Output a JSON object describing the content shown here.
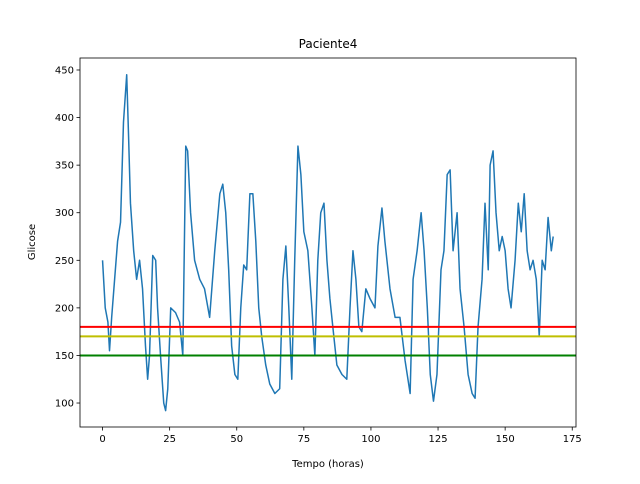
{
  "chart_data": {
    "type": "line",
    "title": "Paciente4",
    "x_label": "Tempo (horas)",
    "y_label": "Glicose",
    "x": [
      0,
      0.5,
      1,
      2,
      2.6,
      3.4,
      4.5,
      5.6,
      6.7,
      7.8,
      9,
      9.7,
      10.4,
      11.6,
      12.7,
      13.8,
      14.9,
      16,
      16.8,
      17.5,
      18.7,
      19.8,
      20.5,
      21.6,
      22.8,
      23.5,
      24.3,
      25.4,
      27.2,
      28.7,
      29.9,
      31,
      31.7,
      32.8,
      34.3,
      36.2,
      38,
      39.9,
      41.8,
      43.7,
      44.8,
      45.9,
      47,
      48.1,
      49.3,
      50.4,
      51.5,
      52.6,
      53.7,
      54.9,
      56,
      57.1,
      58.2,
      59.3,
      60.8,
      62.3,
      64.2,
      66,
      67.2,
      68.3,
      69.4,
      70.5,
      71.6,
      72.8,
      73.9,
      75,
      76.5,
      78,
      79.1,
      80.2,
      81.3,
      82.5,
      83.6,
      84.7,
      85.8,
      87.3,
      89.2,
      91,
      92.2,
      93.3,
      94.4,
      95.5,
      96.6,
      98.1,
      99.6,
      101.5,
      102.6,
      104.1,
      105.2,
      107.1,
      109,
      110.8,
      112.7,
      114.6,
      115.7,
      117.2,
      118.7,
      119.8,
      121,
      122.1,
      123.3,
      124.6,
      126.1,
      127.2,
      128.4,
      129.5,
      130.6,
      132.1,
      133.2,
      134.7,
      136.2,
      137.7,
      138.8,
      139.9,
      141.4,
      142.5,
      143.7,
      144.4,
      145.5,
      146.6,
      147.8,
      148.9,
      150,
      151.1,
      152.2,
      153.7,
      154.9,
      156,
      157.1,
      158.2,
      159.3,
      160.4,
      161.6,
      162.7,
      163.8,
      164.9,
      166,
      167.2,
      167.9
    ],
    "series": [
      {
        "name": "Glicose",
        "color": "#1f77b4",
        "values": [
          250,
          225,
          200,
          185,
          155,
          190,
          230,
          270,
          290,
          395,
          445,
          380,
          310,
          260,
          230,
          250,
          220,
          160,
          125,
          150,
          255,
          250,
          200,
          150,
          100,
          92,
          115,
          200,
          195,
          185,
          150,
          370,
          365,
          300,
          250,
          230,
          220,
          190,
          260,
          320,
          330,
          300,
          240,
          160,
          130,
          125,
          200,
          245,
          240,
          320,
          320,
          270,
          200,
          170,
          140,
          120,
          110,
          115,
          230,
          265,
          200,
          125,
          250,
          370,
          340,
          280,
          260,
          200,
          150,
          250,
          300,
          310,
          250,
          210,
          180,
          140,
          130,
          125,
          200,
          260,
          230,
          180,
          175,
          220,
          210,
          200,
          265,
          305,
          270,
          220,
          190,
          190,
          145,
          110,
          230,
          260,
          300,
          260,
          200,
          130,
          102,
          130,
          240,
          260,
          340,
          345,
          260,
          300,
          220,
          180,
          130,
          110,
          105,
          180,
          230,
          310,
          240,
          350,
          365,
          300,
          260,
          275,
          260,
          220,
          200,
          250,
          310,
          280,
          320,
          260,
          240,
          250,
          230,
          170,
          250,
          240,
          295,
          260,
          275
        ]
      }
    ],
    "hlines": [
      {
        "value": 180,
        "color": "#ff0000"
      },
      {
        "value": 170,
        "color": "#bfbf00"
      },
      {
        "value": 150,
        "color": "#008000"
      }
    ],
    "xlim": [
      -8.4,
      176.4
    ],
    "ylim": [
      74.8,
      462.6
    ],
    "xticks": [
      0,
      25,
      50,
      75,
      100,
      125,
      150,
      175
    ],
    "yticks": [
      100,
      150,
      200,
      250,
      300,
      350,
      400,
      450
    ]
  }
}
